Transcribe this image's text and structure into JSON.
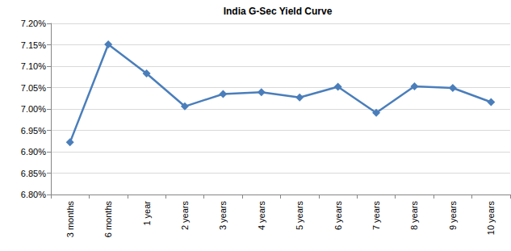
{
  "chart_data": {
    "type": "line",
    "title": "India G-Sec Yield Curve",
    "categories": [
      "3 months",
      "6 months",
      "1 year",
      "2 years",
      "3 years",
      "4 years",
      "5 years",
      "6 years",
      "7 years",
      "8 years",
      "9 years",
      "10 years"
    ],
    "values": [
      6.922,
      7.151,
      7.083,
      7.006,
      7.035,
      7.039,
      7.027,
      7.052,
      6.991,
      7.053,
      7.049,
      7.016
    ],
    "color": "#4a7ebb",
    "marker": "diamond",
    "ylim": [
      6.8,
      7.2
    ],
    "yticks": [
      {
        "value": 6.8,
        "label": "6.80%"
      },
      {
        "value": 6.85,
        "label": "6.85%"
      },
      {
        "value": 6.9,
        "label": "6.90%"
      },
      {
        "value": 6.95,
        "label": "6.95%"
      },
      {
        "value": 7.0,
        "label": "7.00%"
      },
      {
        "value": 7.05,
        "label": "7.05%"
      },
      {
        "value": 7.1,
        "label": "7.10%"
      },
      {
        "value": 7.15,
        "label": "7.15%"
      },
      {
        "value": 7.2,
        "label": "7.20%"
      }
    ],
    "grid": true
  }
}
